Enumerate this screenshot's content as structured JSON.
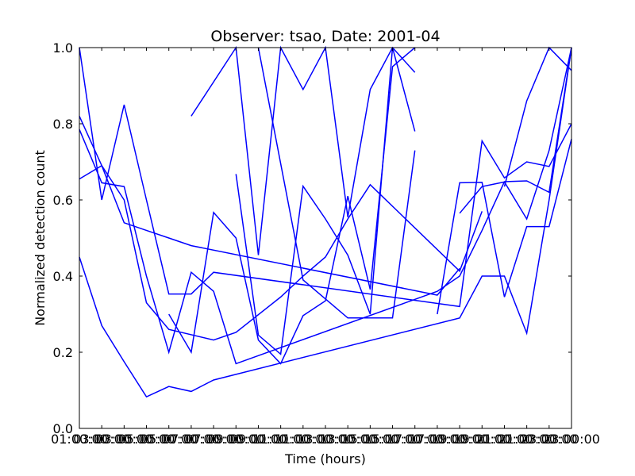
{
  "chart_data": {
    "type": "line",
    "title": "Observer: tsao, Date: 2001-04",
    "xlabel": "Time (hours)",
    "ylabel": "Normalized detection count",
    "xlim": [
      0,
      22
    ],
    "ylim": [
      0,
      1.0
    ],
    "grid": false,
    "legend": "none",
    "x_ticks": [
      {
        "value": 0,
        "label": "01:00:00"
      },
      {
        "value": 1,
        "label": "03:00:00"
      },
      {
        "value": 2,
        "label": "03:00:00"
      },
      {
        "value": 3,
        "label": "05:00:00"
      },
      {
        "value": 4,
        "label": "05:00:00"
      },
      {
        "value": 5,
        "label": "07:00:00"
      },
      {
        "value": 6,
        "label": "07:00:00"
      },
      {
        "value": 7,
        "label": "09:00:00"
      },
      {
        "value": 8,
        "label": "09:00:00"
      },
      {
        "value": 9,
        "label": "11:00:00"
      },
      {
        "value": 10,
        "label": "11:00:00"
      },
      {
        "value": 11,
        "label": "13:00:00"
      },
      {
        "value": 12,
        "label": "13:00:00"
      },
      {
        "value": 13,
        "label": "15:00:00"
      },
      {
        "value": 14,
        "label": "15:00:00"
      },
      {
        "value": 15,
        "label": "17:00:00"
      },
      {
        "value": 16,
        "label": "17:00:00"
      },
      {
        "value": 17,
        "label": "19:00:00"
      },
      {
        "value": 18,
        "label": "19:00:00"
      },
      {
        "value": 19,
        "label": "21:00:00"
      },
      {
        "value": 20,
        "label": "21:00:00"
      },
      {
        "value": 21,
        "label": "23:00:00"
      },
      {
        "value": 22,
        "label": "23:00:00"
      }
    ],
    "y_ticks": [
      {
        "value": 0.0,
        "label": "0.0"
      },
      {
        "value": 0.2,
        "label": "0.2"
      },
      {
        "value": 0.4,
        "label": "0.4"
      },
      {
        "value": 0.6,
        "label": "0.6"
      },
      {
        "value": 0.8,
        "label": "0.8"
      },
      {
        "value": 1.0,
        "label": "1.0"
      }
    ],
    "series_color": "#0000ff",
    "series": [
      {
        "name": "series-1",
        "x": [
          0,
          1,
          2,
          3,
          4,
          5,
          6,
          17,
          18,
          19,
          20,
          21,
          22
        ],
        "y": [
          0.45,
          0.27,
          0.175,
          0.083,
          0.11,
          0.097,
          0.127,
          0.29,
          0.4,
          0.4,
          0.25,
          0.6,
          1.0
        ]
      },
      {
        "name": "series-2",
        "x": [
          0,
          1,
          2,
          3,
          4,
          6,
          7,
          9,
          10,
          11,
          12,
          13,
          17,
          18
        ],
        "y": [
          0.82,
          0.69,
          0.6,
          0.33,
          0.26,
          0.232,
          0.252,
          0.345,
          0.4,
          0.45,
          0.55,
          0.64,
          0.413,
          0.57
        ]
      },
      {
        "name": "series-3",
        "x": [
          0,
          1,
          2,
          3,
          4,
          5,
          6,
          7,
          16,
          17,
          18,
          19,
          20,
          21,
          22
        ],
        "y": [
          0.785,
          0.645,
          0.635,
          0.4,
          0.2,
          0.41,
          0.36,
          0.17,
          0.36,
          0.4,
          0.52,
          0.648,
          0.65,
          0.62,
          1.0
        ]
      },
      {
        "name": "series-4",
        "x": [
          0,
          1,
          2,
          3,
          4,
          5,
          16,
          17
        ],
        "y": [
          0.655,
          0.69,
          0.54,
          0.52,
          0.5,
          0.48,
          0.35,
          0.42
        ]
      },
      {
        "name": "series-5",
        "x": [
          0,
          1,
          2,
          3,
          4,
          5,
          6,
          17,
          18,
          19,
          20,
          21,
          22
        ],
        "y": [
          1.0,
          0.6,
          0.85,
          0.6,
          0.353,
          0.353,
          0.41,
          0.32,
          0.755,
          0.658,
          0.7,
          0.688,
          0.8
        ]
      },
      {
        "name": "series-6",
        "x": [
          4,
          5,
          6,
          7,
          8,
          9,
          10,
          11,
          12,
          13,
          14,
          15
        ],
        "y": [
          0.3,
          0.2,
          0.567,
          0.5,
          0.232,
          0.17,
          0.296,
          0.335,
          0.61,
          0.365,
          0.95,
          1.0
        ]
      },
      {
        "name": "series-7",
        "x": [
          5,
          7,
          8,
          9,
          10,
          11,
          12,
          13,
          14,
          15
        ],
        "y": [
          0.82,
          1.0,
          0.455,
          1.0,
          0.89,
          1.0,
          0.555,
          0.89,
          1.0,
          0.935
        ]
      },
      {
        "name": "series-8",
        "x": [
          7,
          8,
          9,
          10,
          11,
          12,
          13,
          14,
          15
        ],
        "y": [
          0.668,
          0.245,
          0.195,
          0.636,
          0.55,
          0.455,
          0.3,
          1.0,
          0.78
        ]
      },
      {
        "name": "series-9",
        "x": [
          8,
          10,
          12,
          14,
          15
        ],
        "y": [
          1.0,
          0.39,
          0.29,
          0.29,
          0.73
        ]
      },
      {
        "name": "series-10",
        "x": [
          16,
          17,
          18,
          19,
          20,
          21,
          22
        ],
        "y": [
          0.3,
          0.645,
          0.646,
          0.345,
          0.53,
          0.53,
          0.76
        ]
      },
      {
        "name": "series-11",
        "x": [
          17,
          18,
          19,
          20,
          21,
          22
        ],
        "y": [
          0.565,
          0.635,
          0.647,
          0.55,
          0.73,
          1.0
        ]
      },
      {
        "name": "series-12",
        "x": [
          19,
          20,
          21,
          22
        ],
        "y": [
          0.635,
          0.86,
          1.0,
          0.94
        ]
      }
    ]
  }
}
